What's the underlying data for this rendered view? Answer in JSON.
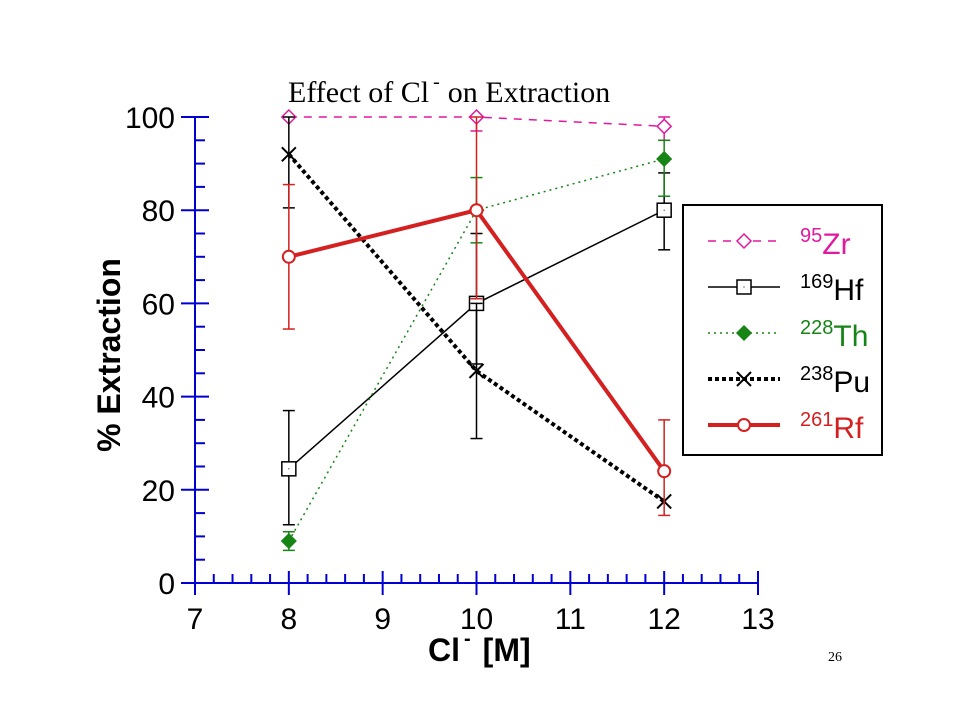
{
  "page_number": "26",
  "chart_data": {
    "type": "line",
    "title_main": "Effect of Cl",
    "title_superscript": "-",
    "title_rest": "on Extraction",
    "xlabel_main": "Cl",
    "xlabel_superscript": "-",
    "xlabel_rest": "[M]",
    "ylabel": "% Extraction",
    "xlim": [
      7,
      13
    ],
    "ylim": [
      0,
      100
    ],
    "xticks": [
      7,
      8,
      9,
      10,
      11,
      12,
      13
    ],
    "yticks": [
      0,
      20,
      40,
      60,
      80,
      100
    ],
    "grid": false,
    "legend_position": "right",
    "series": [
      {
        "mass": "95",
        "element": "Zr",
        "color": "#e0199f",
        "dash": "dashed",
        "stroke_width": "thin",
        "marker": "open-diamond",
        "x": [
          8,
          10,
          12
        ],
        "y": [
          100,
          100,
          98
        ],
        "err_low": [
          100,
          97,
          95
        ],
        "err_high": [
          100,
          100,
          100
        ]
      },
      {
        "mass": "169",
        "element": "Hf",
        "color": "#000000",
        "dash": "solid",
        "stroke_width": "thin",
        "marker": "open-square",
        "x": [
          8,
          10,
          12
        ],
        "y": [
          24.5,
          60,
          80
        ],
        "err_low": [
          12.5,
          47,
          71.5
        ],
        "err_high": [
          37,
          75,
          88
        ]
      },
      {
        "mass": "228",
        "element": "Th",
        "color": "#168516",
        "dash": "dotted",
        "stroke_width": "thin",
        "marker": "filled-diamond",
        "x": [
          8,
          10,
          12
        ],
        "y": [
          9,
          80,
          91
        ],
        "err_low": [
          7,
          73,
          83
        ],
        "err_high": [
          11,
          87,
          95
        ]
      },
      {
        "mass": "238",
        "element": "Pu",
        "color": "#000000",
        "dash": "dotted",
        "stroke_width": "thick",
        "marker": "x",
        "x": [
          8,
          10,
          12
        ],
        "y": [
          92,
          45.5,
          17.5
        ],
        "err_low": [
          80.5,
          31,
          17.5
        ],
        "err_high": [
          100,
          60,
          17.5
        ]
      },
      {
        "mass": "261",
        "element": "Rf",
        "color": "#d42020",
        "dash": "solid",
        "stroke_width": "thick",
        "marker": "open-circle",
        "x": [
          8,
          10,
          12
        ],
        "y": [
          70,
          80,
          24
        ],
        "err_low": [
          54.5,
          61,
          14.5
        ],
        "err_high": [
          85.5,
          100,
          35
        ]
      }
    ]
  }
}
